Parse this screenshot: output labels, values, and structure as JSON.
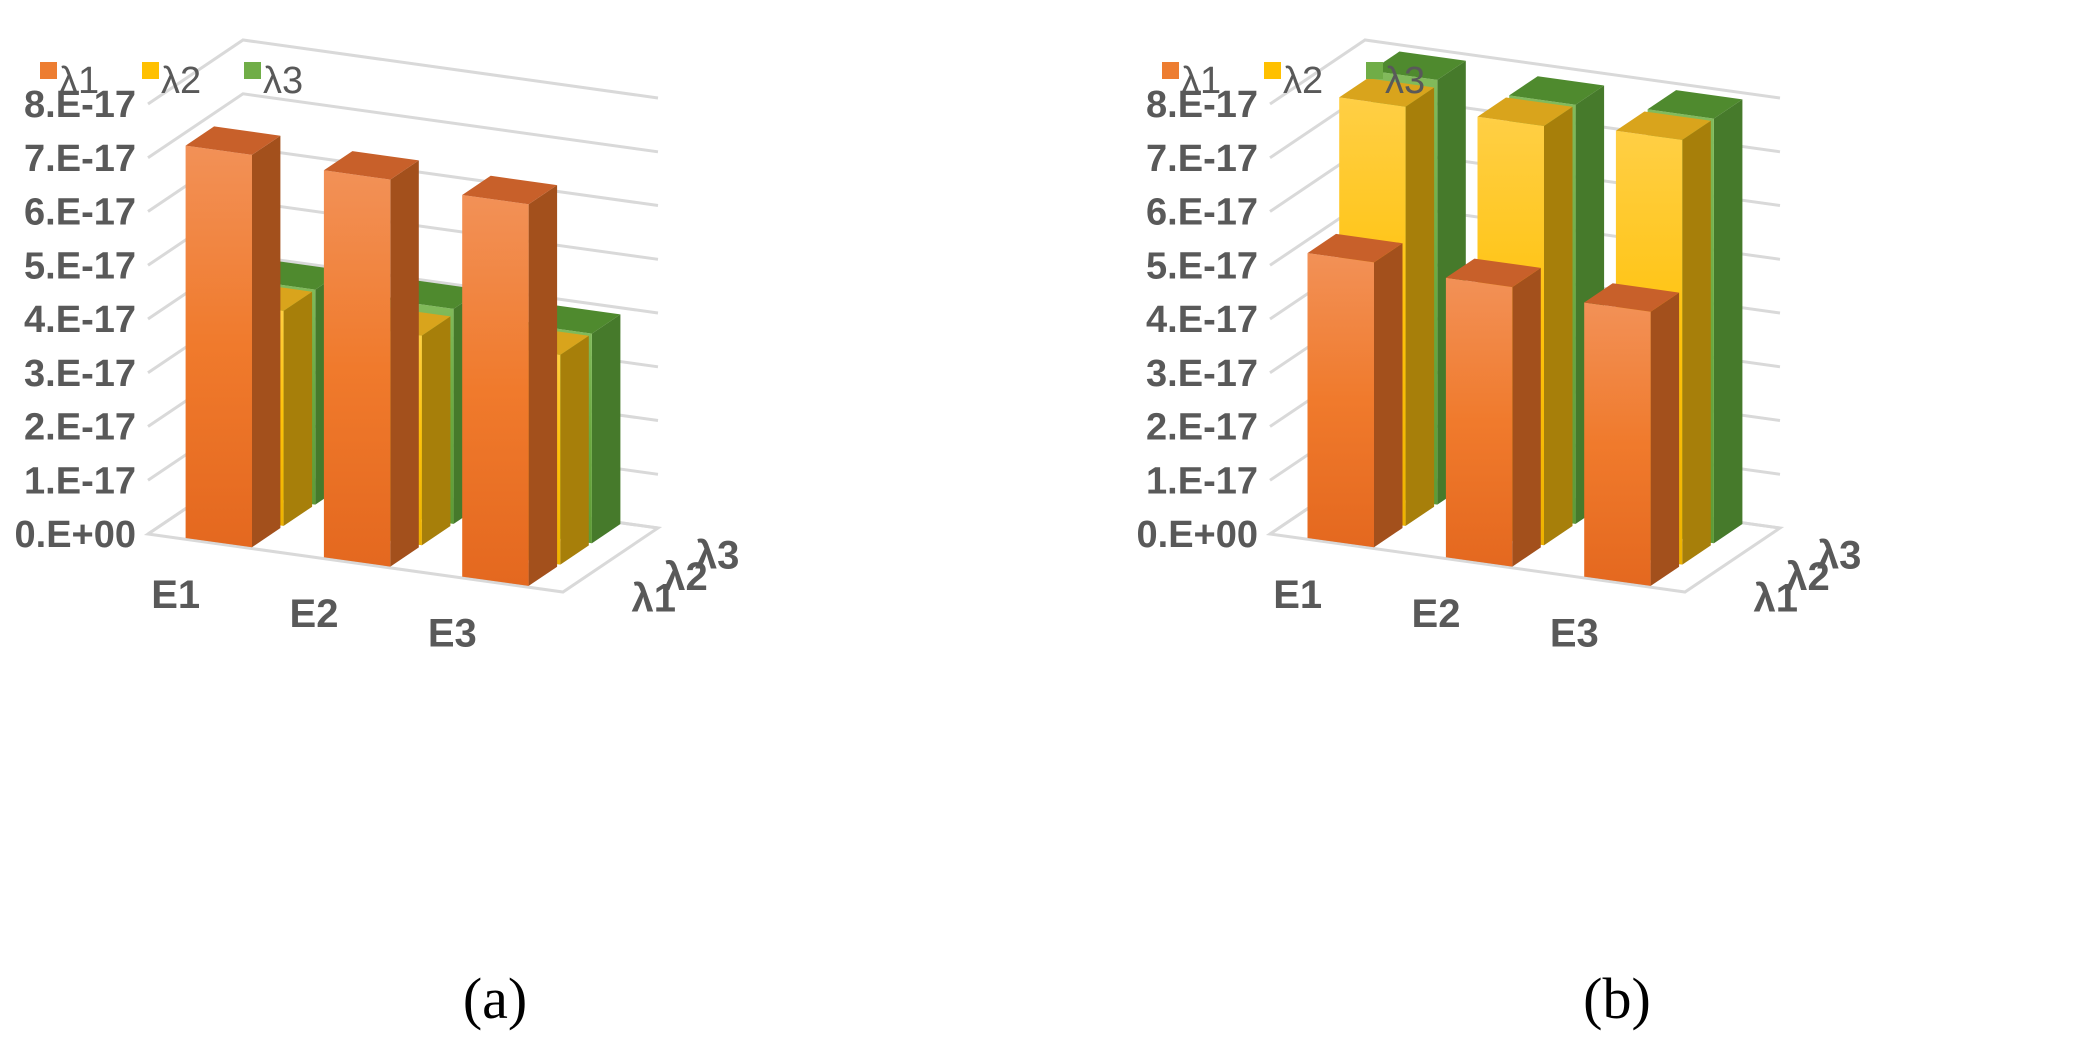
{
  "colors": {
    "lambda1": "#ED7D31",
    "lambda2": "#FFC000",
    "lambda3": "#70AD47",
    "axis_text": "#595959",
    "grid": "#D9D9D9"
  },
  "chart_data": [
    {
      "type": "bar3d",
      "caption": "(a)",
      "categories": [
        "E1",
        "E2",
        "E3"
      ],
      "depth_categories": [
        "λ1",
        "λ2",
        "λ3"
      ],
      "legend": [
        "λ1",
        "λ2",
        "λ3"
      ],
      "yticks": [
        "0.E+00",
        "1.E-17",
        "2.E-17",
        "3.E-17",
        "4.E-17",
        "5.E-17",
        "6.E-17",
        "7.E-17",
        "8.E-17"
      ],
      "ylim": [
        0,
        8e-17
      ],
      "series": [
        {
          "name": "λ1",
          "values": [
            7.3e-17,
            7.2e-17,
            7.1e-17
          ]
        },
        {
          "name": "λ2",
          "values": [
            4e-17,
            3.9e-17,
            3.9e-17
          ]
        },
        {
          "name": "λ3",
          "values": [
            4e-17,
            4e-17,
            3.9e-17
          ]
        }
      ]
    },
    {
      "type": "bar3d",
      "caption": "(b)",
      "categories": [
        "E1",
        "E2",
        "E3"
      ],
      "depth_categories": [
        "λ1",
        "λ2",
        "λ3"
      ],
      "legend": [
        "λ1",
        "λ2",
        "λ3"
      ],
      "yticks": [
        "0.E+00",
        "1.E-17",
        "2.E-17",
        "3.E-17",
        "4.E-17",
        "5.E-17",
        "6.E-17",
        "7.E-17",
        "8.E-17"
      ],
      "ylim": [
        0,
        8e-17
      ],
      "series": [
        {
          "name": "λ1",
          "values": [
            5.3e-17,
            5.2e-17,
            5.1e-17
          ]
        },
        {
          "name": "λ2",
          "values": [
            7.8e-17,
            7.8e-17,
            7.9e-17
          ]
        },
        {
          "name": "λ3",
          "values": [
            7.9e-17,
            7.8e-17,
            7.9e-17
          ]
        }
      ]
    }
  ]
}
